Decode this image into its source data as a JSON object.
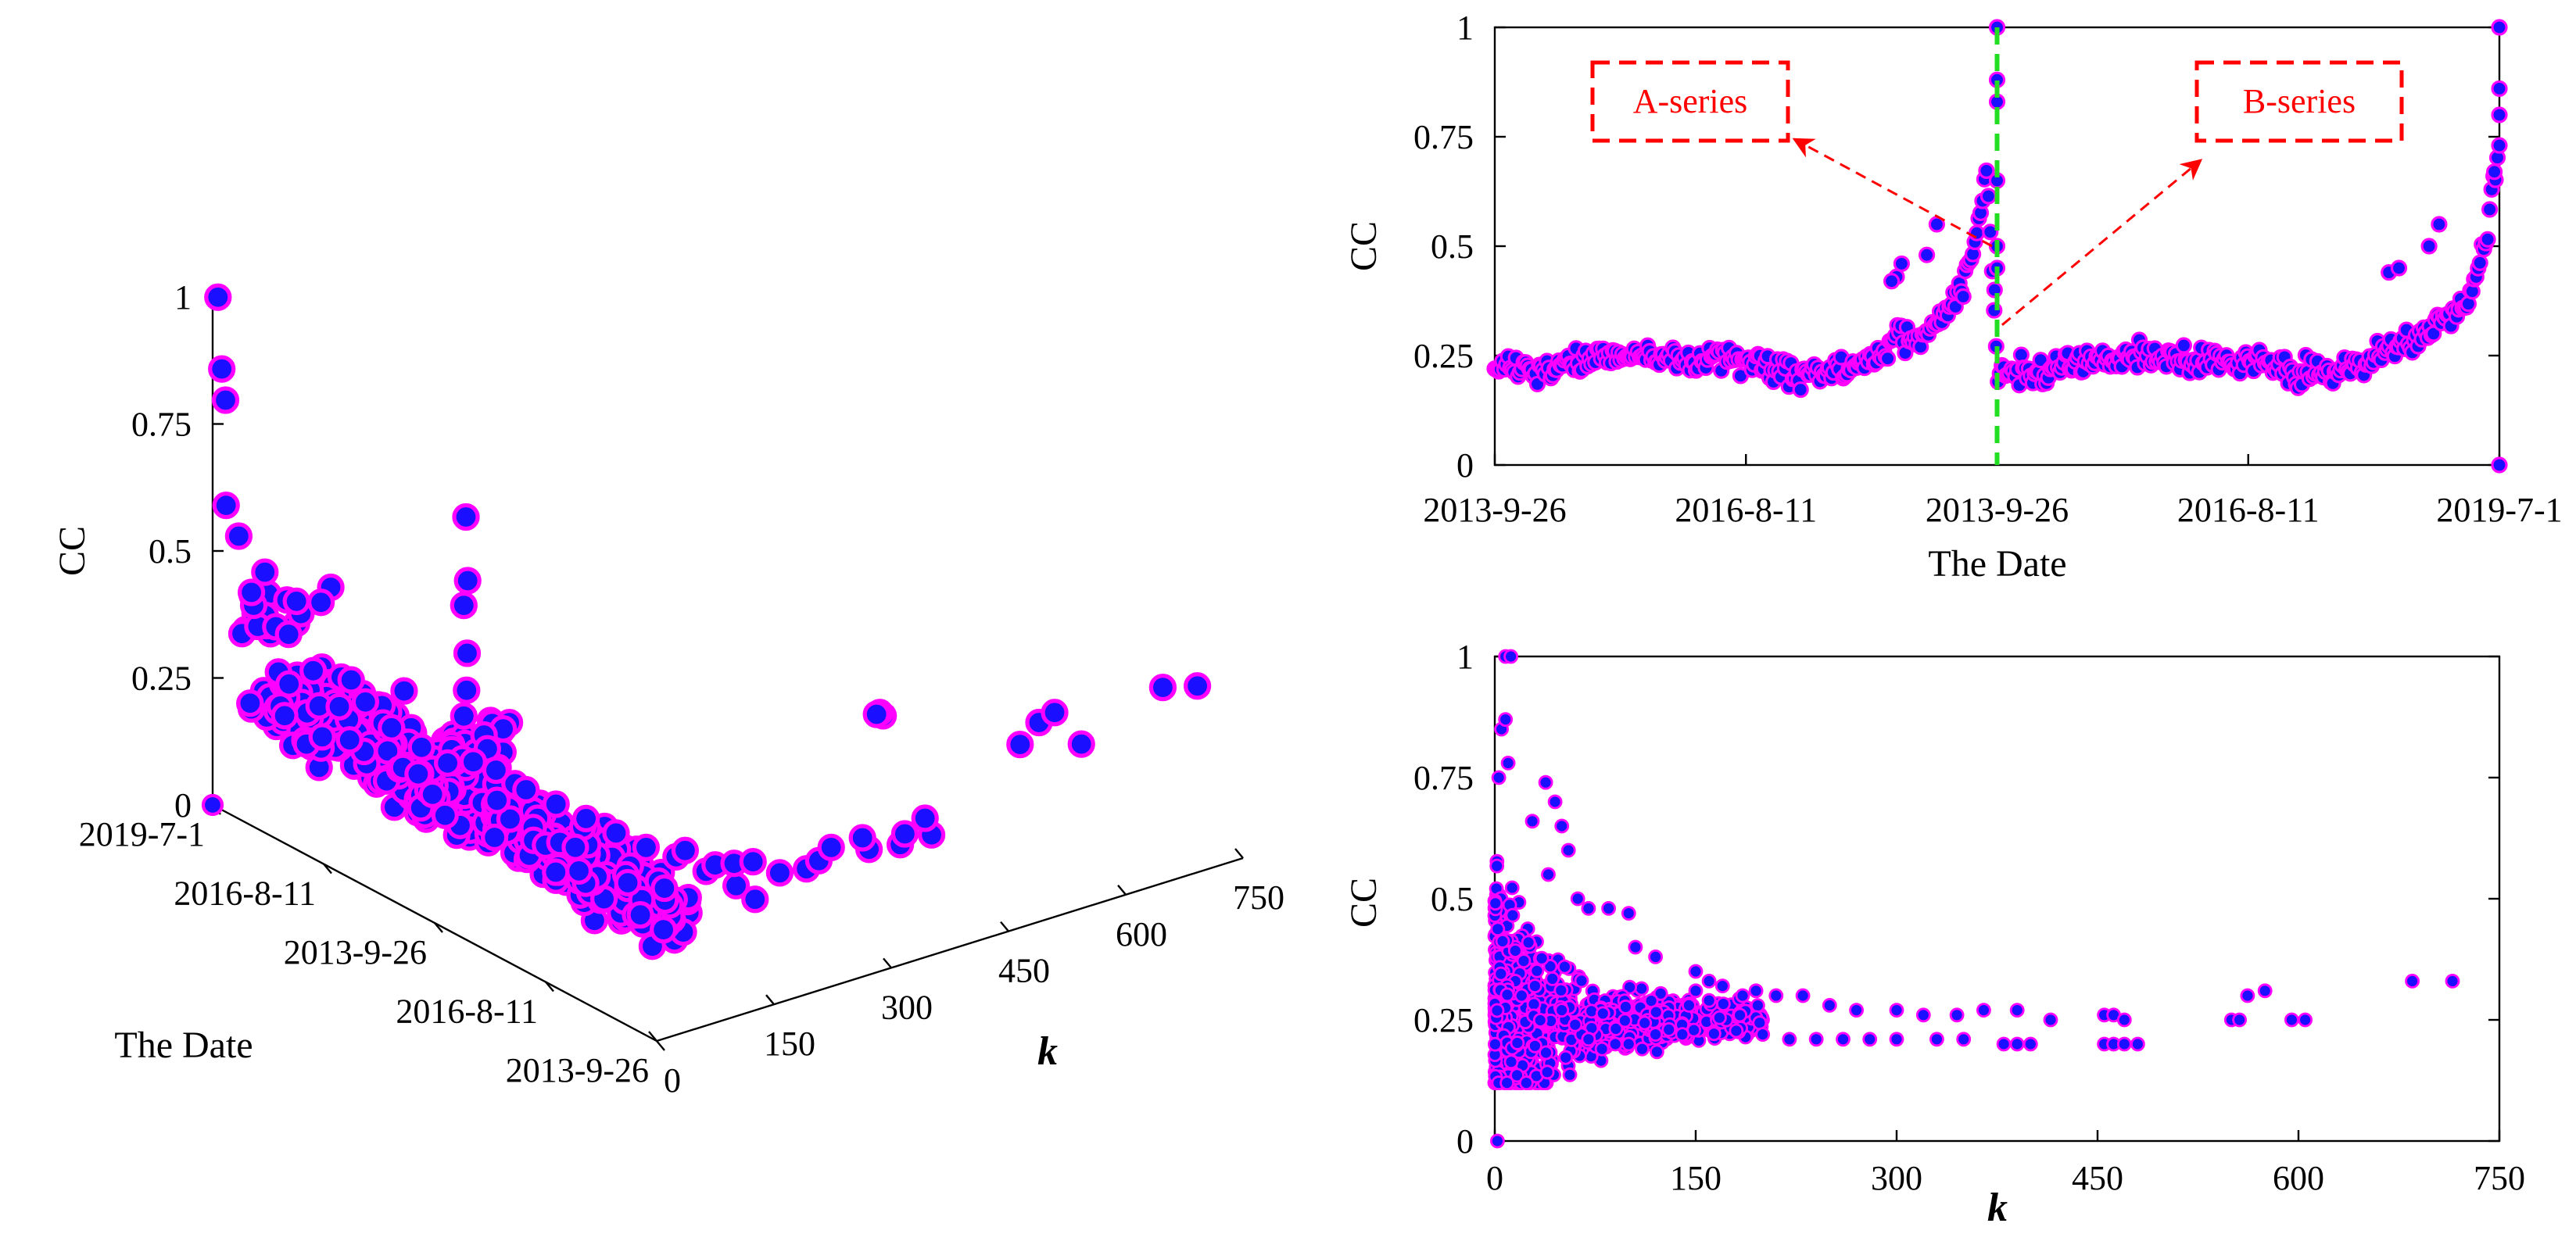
{
  "colors": {
    "marker_face": "#1a10ff",
    "marker_edge": "#ff00ff",
    "annotation": "#ff0000",
    "divider": "#22dd22"
  },
  "chart_data": [
    {
      "type": "scatter",
      "id": "3d",
      "title": "",
      "xlabel": "k",
      "ylabel": "The Date",
      "zlabel": "CC",
      "xlim": [
        0,
        750
      ],
      "zlim": [
        0,
        1
      ],
      "x_ticks": [
        "0",
        "150",
        "300",
        "450",
        "600",
        "750"
      ],
      "date_ticks": [
        "2013-9-26",
        "2016-8-11",
        "2013-9-26",
        "2016-8-11",
        "2019-7-1"
      ],
      "z_ticks": [
        "0",
        "0.25",
        "0.5",
        "0.75",
        "1"
      ],
      "date_index_range": [
        0,
        2
      ],
      "points": [
        [
          4,
          1.99,
          1.0
        ],
        [
          6,
          1.98,
          0.86
        ],
        [
          8,
          1.97,
          0.8
        ],
        [
          3,
          1.95,
          0.6
        ],
        [
          5,
          1.9,
          0.55
        ],
        [
          7,
          1.85,
          0.45
        ],
        [
          10,
          1.8,
          0.5
        ],
        [
          12,
          1.7,
          0.4
        ],
        [
          15,
          1.6,
          0.35
        ],
        [
          20,
          1.5,
          0.3
        ],
        [
          25,
          1.4,
          0.33
        ],
        [
          30,
          1.3,
          0.3
        ],
        [
          40,
          1.2,
          0.28
        ],
        [
          45,
          1.1,
          0.27
        ],
        [
          40,
          1.0,
          0.78
        ],
        [
          45,
          1.01,
          0.65
        ],
        [
          43,
          1.02,
          0.6
        ],
        [
          50,
          1.03,
          0.5
        ],
        [
          55,
          1.05,
          0.42
        ],
        [
          60,
          1.08,
          0.36
        ],
        [
          50,
          0.9,
          0.3
        ],
        [
          60,
          0.8,
          0.28
        ],
        [
          70,
          0.7,
          0.27
        ],
        [
          80,
          0.6,
          0.26
        ],
        [
          90,
          0.5,
          0.25
        ],
        [
          100,
          0.4,
          0.24
        ],
        [
          110,
          0.3,
          0.24
        ],
        [
          120,
          0.2,
          0.23
        ],
        [
          130,
          0.1,
          0.22
        ],
        [
          140,
          0.05,
          0.2
        ],
        [
          150,
          0.4,
          0.21
        ],
        [
          160,
          0.3,
          0.2
        ],
        [
          170,
          0.25,
          0.21
        ],
        [
          180,
          0.2,
          0.22
        ],
        [
          200,
          0.15,
          0.2
        ],
        [
          220,
          0.1,
          0.21
        ],
        [
          250,
          0.15,
          0.2
        ],
        [
          280,
          0.2,
          0.2
        ],
        [
          300,
          0.1,
          0.21
        ],
        [
          320,
          0.2,
          0.2
        ],
        [
          340,
          0.1,
          0.2
        ],
        [
          360,
          0.15,
          0.2
        ],
        [
          380,
          0.1,
          0.2
        ],
        [
          400,
          0.2,
          0.2
        ],
        [
          460,
          0.6,
          0.28
        ],
        [
          470,
          0.65,
          0.27
        ],
        [
          480,
          0.7,
          0.25
        ],
        [
          550,
          0.3,
          0.25
        ],
        [
          560,
          0.25,
          0.3
        ],
        [
          580,
          0.25,
          0.31
        ],
        [
          600,
          0.2,
          0.25
        ],
        [
          690,
          0.15,
          0.33
        ],
        [
          720,
          0.1,
          0.33
        ]
      ]
    },
    {
      "type": "scatter",
      "id": "time",
      "title": "",
      "xlabel": "The Date",
      "ylabel": "CC",
      "xlim": [
        0,
        2
      ],
      "ylim": [
        0,
        1
      ],
      "x_ticks": [
        "2013-9-26",
        "2016-8-11",
        "2013-9-26",
        "2016-8-11",
        "2019-7-1"
      ],
      "y_ticks": [
        "0",
        "0.25",
        "0.5",
        "0.75",
        "1"
      ],
      "divider_at": 1.0,
      "annotations": [
        {
          "text": "A-series",
          "target": [
            0.99,
            0.5
          ]
        },
        {
          "text": "B-series",
          "target": [
            1.01,
            0.32
          ]
        }
      ],
      "y_profile": [
        [
          0.0,
          0.22
        ],
        [
          0.05,
          0.23
        ],
        [
          0.1,
          0.22
        ],
        [
          0.2,
          0.25
        ],
        [
          0.3,
          0.25
        ],
        [
          0.4,
          0.24
        ],
        [
          0.5,
          0.24
        ],
        [
          0.55,
          0.22
        ],
        [
          0.6,
          0.21
        ],
        [
          0.7,
          0.22
        ],
        [
          0.75,
          0.24
        ],
        [
          0.8,
          0.28
        ],
        [
          0.85,
          0.3
        ],
        [
          0.9,
          0.36
        ],
        [
          0.93,
          0.4
        ],
        [
          0.96,
          0.52
        ],
        [
          0.98,
          0.68
        ],
        [
          1.0,
          0.2
        ],
        [
          1.05,
          0.22
        ],
        [
          1.1,
          0.22
        ],
        [
          1.2,
          0.24
        ],
        [
          1.3,
          0.25
        ],
        [
          1.4,
          0.24
        ],
        [
          1.5,
          0.24
        ],
        [
          1.6,
          0.21
        ],
        [
          1.7,
          0.22
        ],
        [
          1.75,
          0.24
        ],
        [
          1.8,
          0.27
        ],
        [
          1.85,
          0.3
        ],
        [
          1.9,
          0.33
        ],
        [
          1.94,
          0.37
        ],
        [
          1.97,
          0.5
        ],
        [
          1.99,
          0.65
        ],
        [
          2.0,
          0.72
        ]
      ],
      "extra_points": [
        [
          1.0,
          1.0
        ],
        [
          1.0,
          0.88
        ],
        [
          1.0,
          0.83
        ],
        [
          1.0,
          0.65
        ],
        [
          1.0,
          0.5
        ],
        [
          1.0,
          0.45
        ],
        [
          0.995,
          0.4
        ],
        [
          0.8,
          0.43
        ],
        [
          0.81,
          0.46
        ],
        [
          0.79,
          0.42
        ],
        [
          0.86,
          0.48
        ],
        [
          0.88,
          0.55
        ],
        [
          2.0,
          1.0
        ],
        [
          2.0,
          0.86
        ],
        [
          2.0,
          0.8
        ],
        [
          2.0,
          0.0
        ],
        [
          1.99,
          0.67
        ],
        [
          1.78,
          0.44
        ],
        [
          1.8,
          0.45
        ],
        [
          1.86,
          0.5
        ],
        [
          1.88,
          0.55
        ]
      ]
    },
    {
      "type": "scatter",
      "id": "k",
      "title": "",
      "xlabel": "k",
      "ylabel": "CC",
      "xlim": [
        0,
        750
      ],
      "ylim": [
        0,
        1
      ],
      "x_ticks": [
        "0",
        "150",
        "300",
        "450",
        "600",
        "750"
      ],
      "y_ticks": [
        "0",
        "0.25",
        "0.5",
        "0.75",
        "1"
      ],
      "points": [
        [
          2,
          0.0
        ],
        [
          8,
          1.0
        ],
        [
          12,
          1.0
        ],
        [
          5,
          0.85
        ],
        [
          8,
          0.87
        ],
        [
          3,
          0.75
        ],
        [
          10,
          0.78
        ],
        [
          38,
          0.74
        ],
        [
          28,
          0.66
        ],
        [
          45,
          0.7
        ],
        [
          50,
          0.65
        ],
        [
          55,
          0.6
        ],
        [
          40,
          0.55
        ],
        [
          62,
          0.5
        ],
        [
          70,
          0.48
        ],
        [
          85,
          0.48
        ],
        [
          100,
          0.47
        ],
        [
          105,
          0.4
        ],
        [
          120,
          0.38
        ],
        [
          150,
          0.35
        ],
        [
          160,
          0.33
        ],
        [
          170,
          0.32
        ],
        [
          185,
          0.3
        ],
        [
          195,
          0.31
        ],
        [
          210,
          0.3
        ],
        [
          230,
          0.3
        ],
        [
          250,
          0.28
        ],
        [
          270,
          0.27
        ],
        [
          300,
          0.27
        ],
        [
          320,
          0.26
        ],
        [
          345,
          0.26
        ],
        [
          365,
          0.27
        ],
        [
          390,
          0.27
        ],
        [
          415,
          0.25
        ],
        [
          200,
          0.22
        ],
        [
          220,
          0.21
        ],
        [
          240,
          0.21
        ],
        [
          260,
          0.21
        ],
        [
          280,
          0.21
        ],
        [
          300,
          0.21
        ],
        [
          330,
          0.21
        ],
        [
          350,
          0.21
        ],
        [
          380,
          0.2
        ],
        [
          390,
          0.2
        ],
        [
          400,
          0.2
        ],
        [
          455,
          0.26
        ],
        [
          462,
          0.26
        ],
        [
          470,
          0.25
        ],
        [
          455,
          0.2
        ],
        [
          462,
          0.2
        ],
        [
          470,
          0.2
        ],
        [
          480,
          0.2
        ],
        [
          550,
          0.25
        ],
        [
          556,
          0.25
        ],
        [
          562,
          0.3
        ],
        [
          575,
          0.31
        ],
        [
          595,
          0.25
        ],
        [
          605,
          0.25
        ],
        [
          685,
          0.33
        ],
        [
          715,
          0.33
        ],
        [
          160,
          0.29
        ],
        [
          150,
          0.31
        ],
        [
          145,
          0.28
        ],
        [
          130,
          0.23
        ],
        [
          140,
          0.22
        ],
        [
          120,
          0.22
        ],
        [
          100,
          0.2
        ],
        [
          110,
          0.19
        ],
        [
          90,
          0.2
        ],
        [
          80,
          0.19
        ],
        [
          70,
          0.21
        ],
        [
          60,
          0.24
        ],
        [
          50,
          0.27
        ],
        [
          30,
          0.32
        ],
        [
          20,
          0.3
        ]
      ],
      "dense_region": {
        "k_range": [
          0,
          200
        ],
        "cc_center": 0.25
      }
    }
  ]
}
